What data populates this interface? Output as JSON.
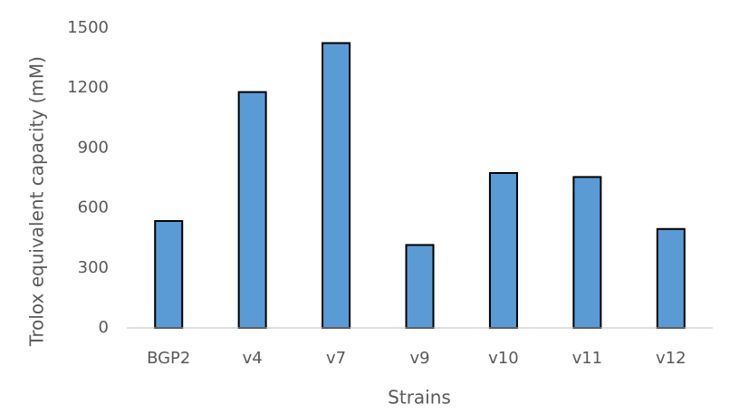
{
  "chart_data": {
    "type": "bar",
    "categories": [
      "BGP2",
      "v4",
      "v7",
      "v9",
      "v10",
      "v11",
      "v12"
    ],
    "values": [
      535,
      1180,
      1425,
      415,
      775,
      755,
      495
    ],
    "color": "#5b9bd5",
    "ylim": [
      0,
      1500
    ],
    "yticks": [
      0,
      300,
      600,
      900,
      1200,
      1500
    ],
    "x_label": "Strains",
    "y_label": "Trolox equivalent capacity (mM)",
    "grid": false
  }
}
